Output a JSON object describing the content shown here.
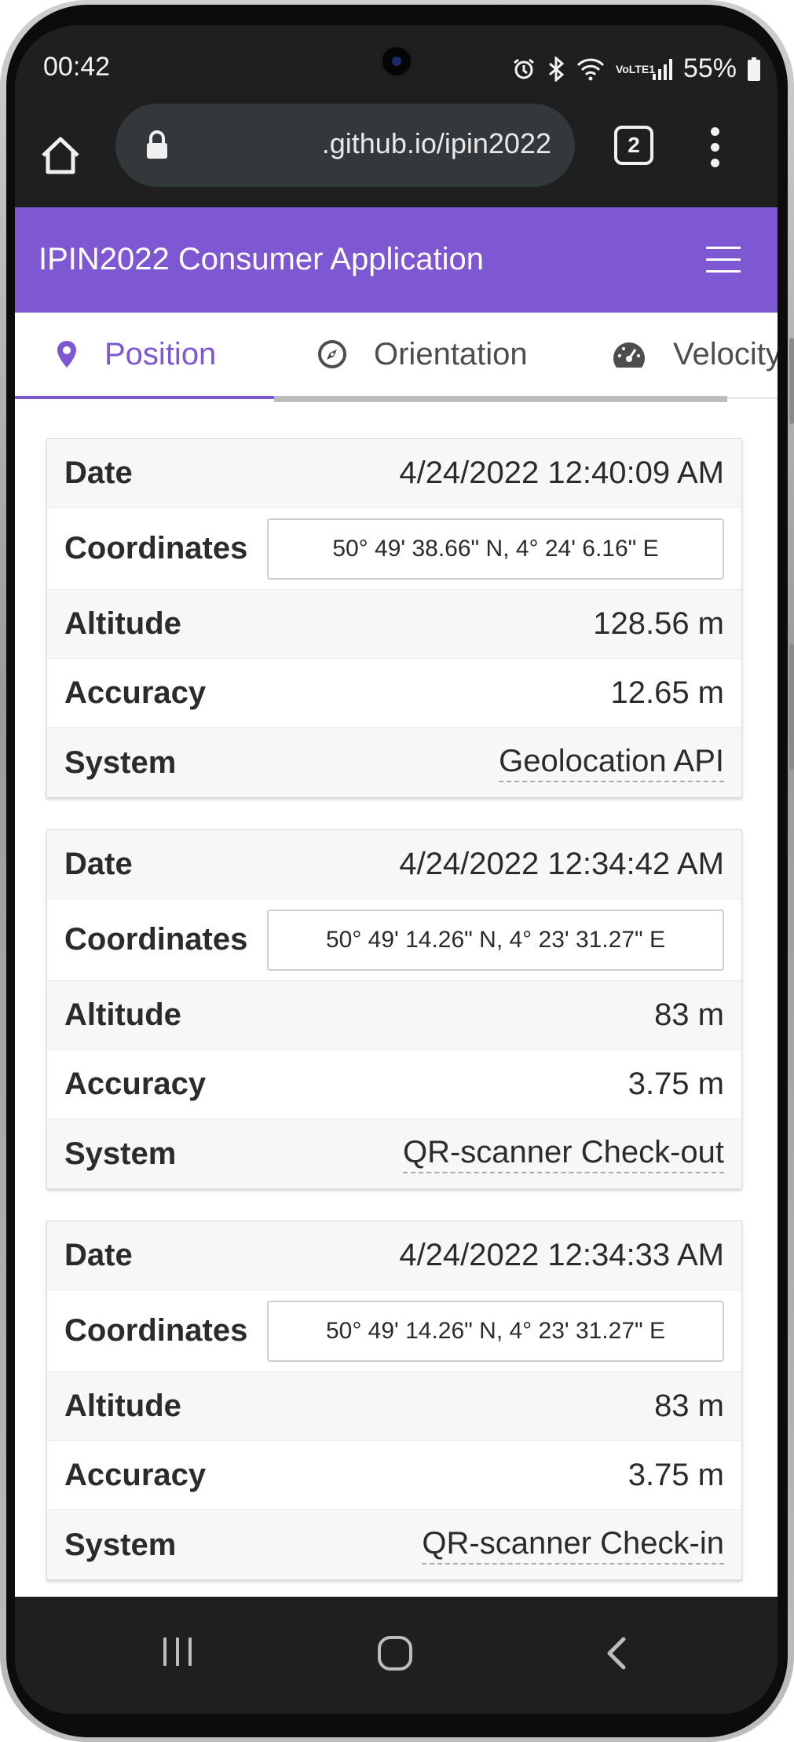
{
  "status_bar": {
    "time": "00:42",
    "network": "VoLTE1",
    "battery": "55%"
  },
  "browser": {
    "url_display": ".github.io/ipin2022",
    "tab_count": "2"
  },
  "app": {
    "title": "IPIN2022 Consumer Application",
    "accent_color": "#7e57d2"
  },
  "tabs": [
    {
      "label": "Position",
      "icon": "map-marker-icon",
      "active": true
    },
    {
      "label": "Orientation",
      "icon": "compass-icon",
      "active": false
    },
    {
      "label": "Velocity",
      "icon": "speedometer-icon",
      "active": false
    }
  ],
  "labels": {
    "date": "Date",
    "coordinates": "Coordinates",
    "altitude": "Altitude",
    "accuracy": "Accuracy",
    "system": "System"
  },
  "positions": [
    {
      "date": "4/24/2022 12:40:09 AM",
      "coordinates": "50° 49' 38.66\" N, 4° 24' 6.16\" E",
      "altitude": "128.56 m",
      "accuracy": "12.65 m",
      "system": "Geolocation API"
    },
    {
      "date": "4/24/2022 12:34:42 AM",
      "coordinates": "50° 49' 14.26\" N, 4° 23' 31.27\" E",
      "altitude": "83 m",
      "accuracy": "3.75 m",
      "system": "QR-scanner Check-out"
    },
    {
      "date": "4/24/2022 12:34:33 AM",
      "coordinates": "50° 49' 14.26\" N, 4° 23' 31.27\" E",
      "altitude": "83 m",
      "accuracy": "3.75 m",
      "system": "QR-scanner Check-in"
    }
  ]
}
